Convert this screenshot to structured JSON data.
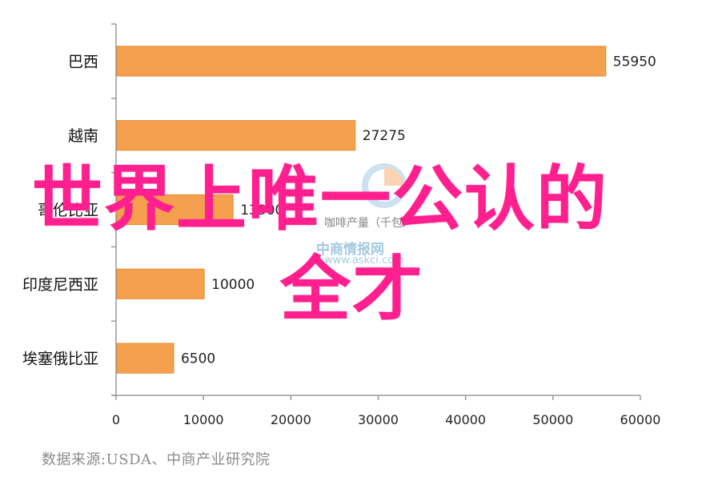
{
  "chart_data": {
    "type": "bar",
    "orientation": "horizontal",
    "categories": [
      "巴西",
      "越南",
      "哥伦比亚",
      "印度尼西亚",
      "埃塞俄比亚"
    ],
    "values": [
      55950,
      27275,
      13300,
      10000,
      6500
    ],
    "data_labels": [
      "55950",
      "27275",
      "13300",
      "10000",
      "6500"
    ],
    "xlim": [
      0,
      60000
    ],
    "x_ticks": [
      "0",
      "10000",
      "20000",
      "30000",
      "40000",
      "50000",
      "60000"
    ],
    "bar_color": "#f5a04e",
    "bar_edge_color": "#e58a2e",
    "grid": false
  },
  "source_text": "数据来源:USDA、中商产业研究院",
  "watermark": {
    "line1": "咖啡产量（千包）",
    "line2": "中商情报网",
    "line3": "www.askci.com"
  },
  "overlay": {
    "line1": "世界上唯一公认的",
    "line2": "全才",
    "color": "#ff1f8e"
  }
}
